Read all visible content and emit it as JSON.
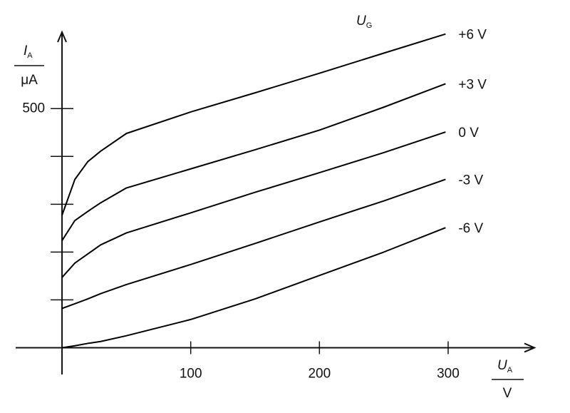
{
  "chart_data": {
    "type": "line",
    "x_label": {
      "quantity": "U",
      "subscript": "A",
      "unit": "V"
    },
    "y_label": {
      "quantity": "I",
      "subscript": "A",
      "unit": "μA"
    },
    "legend_title": {
      "quantity": "U",
      "subscript": "G"
    },
    "x": [
      0,
      10,
      20,
      30,
      50,
      100,
      150,
      200,
      250,
      298
    ],
    "series": [
      {
        "name": "+6 V",
        "color": "#000000",
        "values": [
          277,
          352,
          389,
          411,
          448,
          493,
          533,
          574,
          616,
          656
        ]
      },
      {
        "name": "+3 V",
        "color": "#000000",
        "values": [
          224,
          266,
          285,
          303,
          334,
          374,
          414,
          455,
          503,
          552
        ]
      },
      {
        "name": "0 V",
        "color": "#000000",
        "values": [
          147,
          177,
          196,
          215,
          240,
          282,
          325,
          366,
          408,
          451
        ]
      },
      {
        "name": "-3 V",
        "color": "#000000",
        "values": [
          82,
          92,
          102,
          113,
          132,
          174,
          218,
          263,
          307,
          352
        ]
      },
      {
        "name": "-6 V",
        "color": "#000000",
        "values": [
          0,
          4,
          9,
          13,
          25,
          59,
          102,
          151,
          200,
          251
        ]
      }
    ],
    "xlim": [
      -36,
      367
    ],
    "ylim": [
      -56,
      660
    ],
    "xticks": [
      100,
      200,
      300
    ],
    "yticks": [
      500
    ],
    "yticks_minor": [
      100,
      200,
      300,
      400
    ],
    "grid": false
  }
}
